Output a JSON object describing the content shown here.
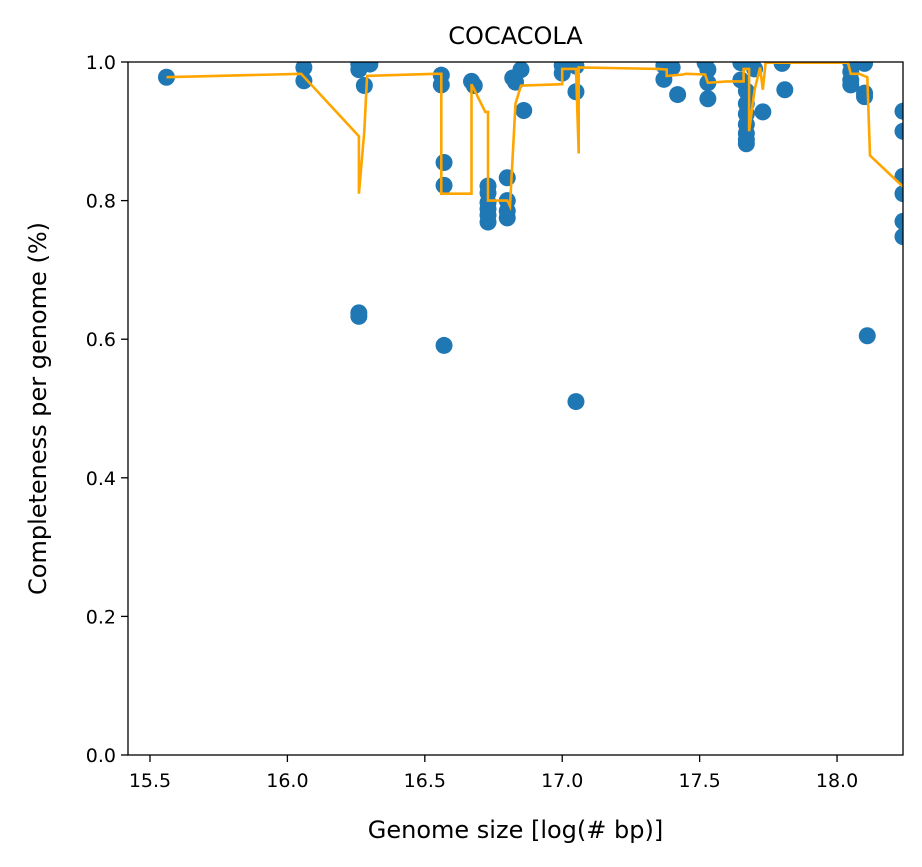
{
  "chart_data": {
    "type": "scatter",
    "title": "COCACOLA",
    "xlabel": "Genome size [log(# bp)]",
    "ylabel": "Completeness per genome (%)",
    "xlim": [
      15.42,
      18.24
    ],
    "ylim": [
      0.0,
      1.0
    ],
    "xticks": [
      15.5,
      16.0,
      16.5,
      17.0,
      17.5,
      18.0
    ],
    "xtick_labels": [
      "15.5",
      "16.0",
      "16.5",
      "17.0",
      "17.5",
      "18.0"
    ],
    "yticks": [
      0.0,
      0.2,
      0.4,
      0.6,
      0.8,
      1.0
    ],
    "ytick_labels": [
      "0.0",
      "0.2",
      "0.4",
      "0.6",
      "0.8",
      "1.0"
    ],
    "grid": false,
    "colors": {
      "points": "#1f77b4",
      "line": "#ffa500"
    },
    "points": [
      [
        15.56,
        0.978
      ],
      [
        16.06,
        0.992
      ],
      [
        16.06,
        0.973
      ],
      [
        16.26,
        0.997
      ],
      [
        16.26,
        0.989
      ],
      [
        16.26,
        0.638
      ],
      [
        16.26,
        0.633
      ],
      [
        16.28,
        0.966
      ],
      [
        16.3,
        0.997
      ],
      [
        16.56,
        0.981
      ],
      [
        16.56,
        0.967
      ],
      [
        16.57,
        0.855
      ],
      [
        16.57,
        0.822
      ],
      [
        16.57,
        0.591
      ],
      [
        16.67,
        0.972
      ],
      [
        16.68,
        0.966
      ],
      [
        16.73,
        0.821
      ],
      [
        16.73,
        0.811
      ],
      [
        16.73,
        0.797
      ],
      [
        16.73,
        0.788
      ],
      [
        16.73,
        0.779
      ],
      [
        16.73,
        0.769
      ],
      [
        16.8,
        0.833
      ],
      [
        16.8,
        0.8
      ],
      [
        16.8,
        0.785
      ],
      [
        16.8,
        0.775
      ],
      [
        16.82,
        0.977
      ],
      [
        16.83,
        0.971
      ],
      [
        16.85,
        0.989
      ],
      [
        16.86,
        0.93
      ],
      [
        17.0,
        0.995
      ],
      [
        17.0,
        0.984
      ],
      [
        17.02,
        0.999
      ],
      [
        17.05,
        0.994
      ],
      [
        17.05,
        0.957
      ],
      [
        17.05,
        0.51
      ],
      [
        17.37,
        0.995
      ],
      [
        17.37,
        0.975
      ],
      [
        17.4,
        0.992
      ],
      [
        17.42,
        0.953
      ],
      [
        17.52,
        0.999
      ],
      [
        17.53,
        0.989
      ],
      [
        17.53,
        0.97
      ],
      [
        17.53,
        0.947
      ],
      [
        17.65,
        0.999
      ],
      [
        17.65,
        0.974
      ],
      [
        17.67,
        0.958
      ],
      [
        17.67,
        0.94
      ],
      [
        17.67,
        0.925
      ],
      [
        17.67,
        0.91
      ],
      [
        17.67,
        0.897
      ],
      [
        17.67,
        0.888
      ],
      [
        17.67,
        0.882
      ],
      [
        17.7,
        0.99
      ],
      [
        17.73,
        0.928
      ],
      [
        17.8,
        0.998
      ],
      [
        17.81,
        0.96
      ],
      [
        18.05,
        0.999
      ],
      [
        18.05,
        0.986
      ],
      [
        18.05,
        0.974
      ],
      [
        18.05,
        0.967
      ],
      [
        18.1,
        0.998
      ],
      [
        18.1,
        0.955
      ],
      [
        18.1,
        0.95
      ],
      [
        18.11,
        0.605
      ],
      [
        18.24,
        0.929
      ],
      [
        18.24,
        0.9
      ],
      [
        18.24,
        0.835
      ],
      [
        18.24,
        0.81
      ],
      [
        18.24,
        0.77
      ],
      [
        18.24,
        0.748
      ]
    ],
    "line": [
      [
        15.56,
        0.978
      ],
      [
        16.05,
        0.983
      ],
      [
        16.26,
        0.893
      ],
      [
        16.26,
        0.81
      ],
      [
        16.28,
        0.9
      ],
      [
        16.29,
        0.98
      ],
      [
        16.54,
        0.983
      ],
      [
        16.56,
        0.983
      ],
      [
        16.56,
        0.81
      ],
      [
        16.67,
        0.81
      ],
      [
        16.67,
        0.968
      ],
      [
        16.72,
        0.928
      ],
      [
        16.73,
        0.928
      ],
      [
        16.73,
        0.8
      ],
      [
        16.8,
        0.8
      ],
      [
        16.81,
        0.792
      ],
      [
        16.83,
        0.94
      ],
      [
        16.85,
        0.966
      ],
      [
        17.0,
        0.968
      ],
      [
        17.0,
        0.99
      ],
      [
        17.05,
        0.99
      ],
      [
        17.06,
        0.868
      ],
      [
        17.06,
        0.992
      ],
      [
        17.35,
        0.99
      ],
      [
        17.38,
        0.989
      ],
      [
        17.38,
        0.98
      ],
      [
        17.44,
        0.982
      ],
      [
        17.45,
        0.983
      ],
      [
        17.52,
        0.982
      ],
      [
        17.53,
        0.97
      ],
      [
        17.6,
        0.972
      ],
      [
        17.66,
        0.972
      ],
      [
        17.66,
        0.99
      ],
      [
        17.68,
        0.99
      ],
      [
        17.68,
        0.9
      ],
      [
        17.7,
        0.96
      ],
      [
        17.72,
        0.992
      ],
      [
        17.73,
        0.96
      ],
      [
        17.74,
        0.999
      ],
      [
        18.04,
        0.999
      ],
      [
        18.05,
        0.983
      ],
      [
        18.08,
        0.983
      ],
      [
        18.11,
        0.978
      ],
      [
        18.12,
        0.865
      ],
      [
        18.24,
        0.82
      ]
    ]
  }
}
